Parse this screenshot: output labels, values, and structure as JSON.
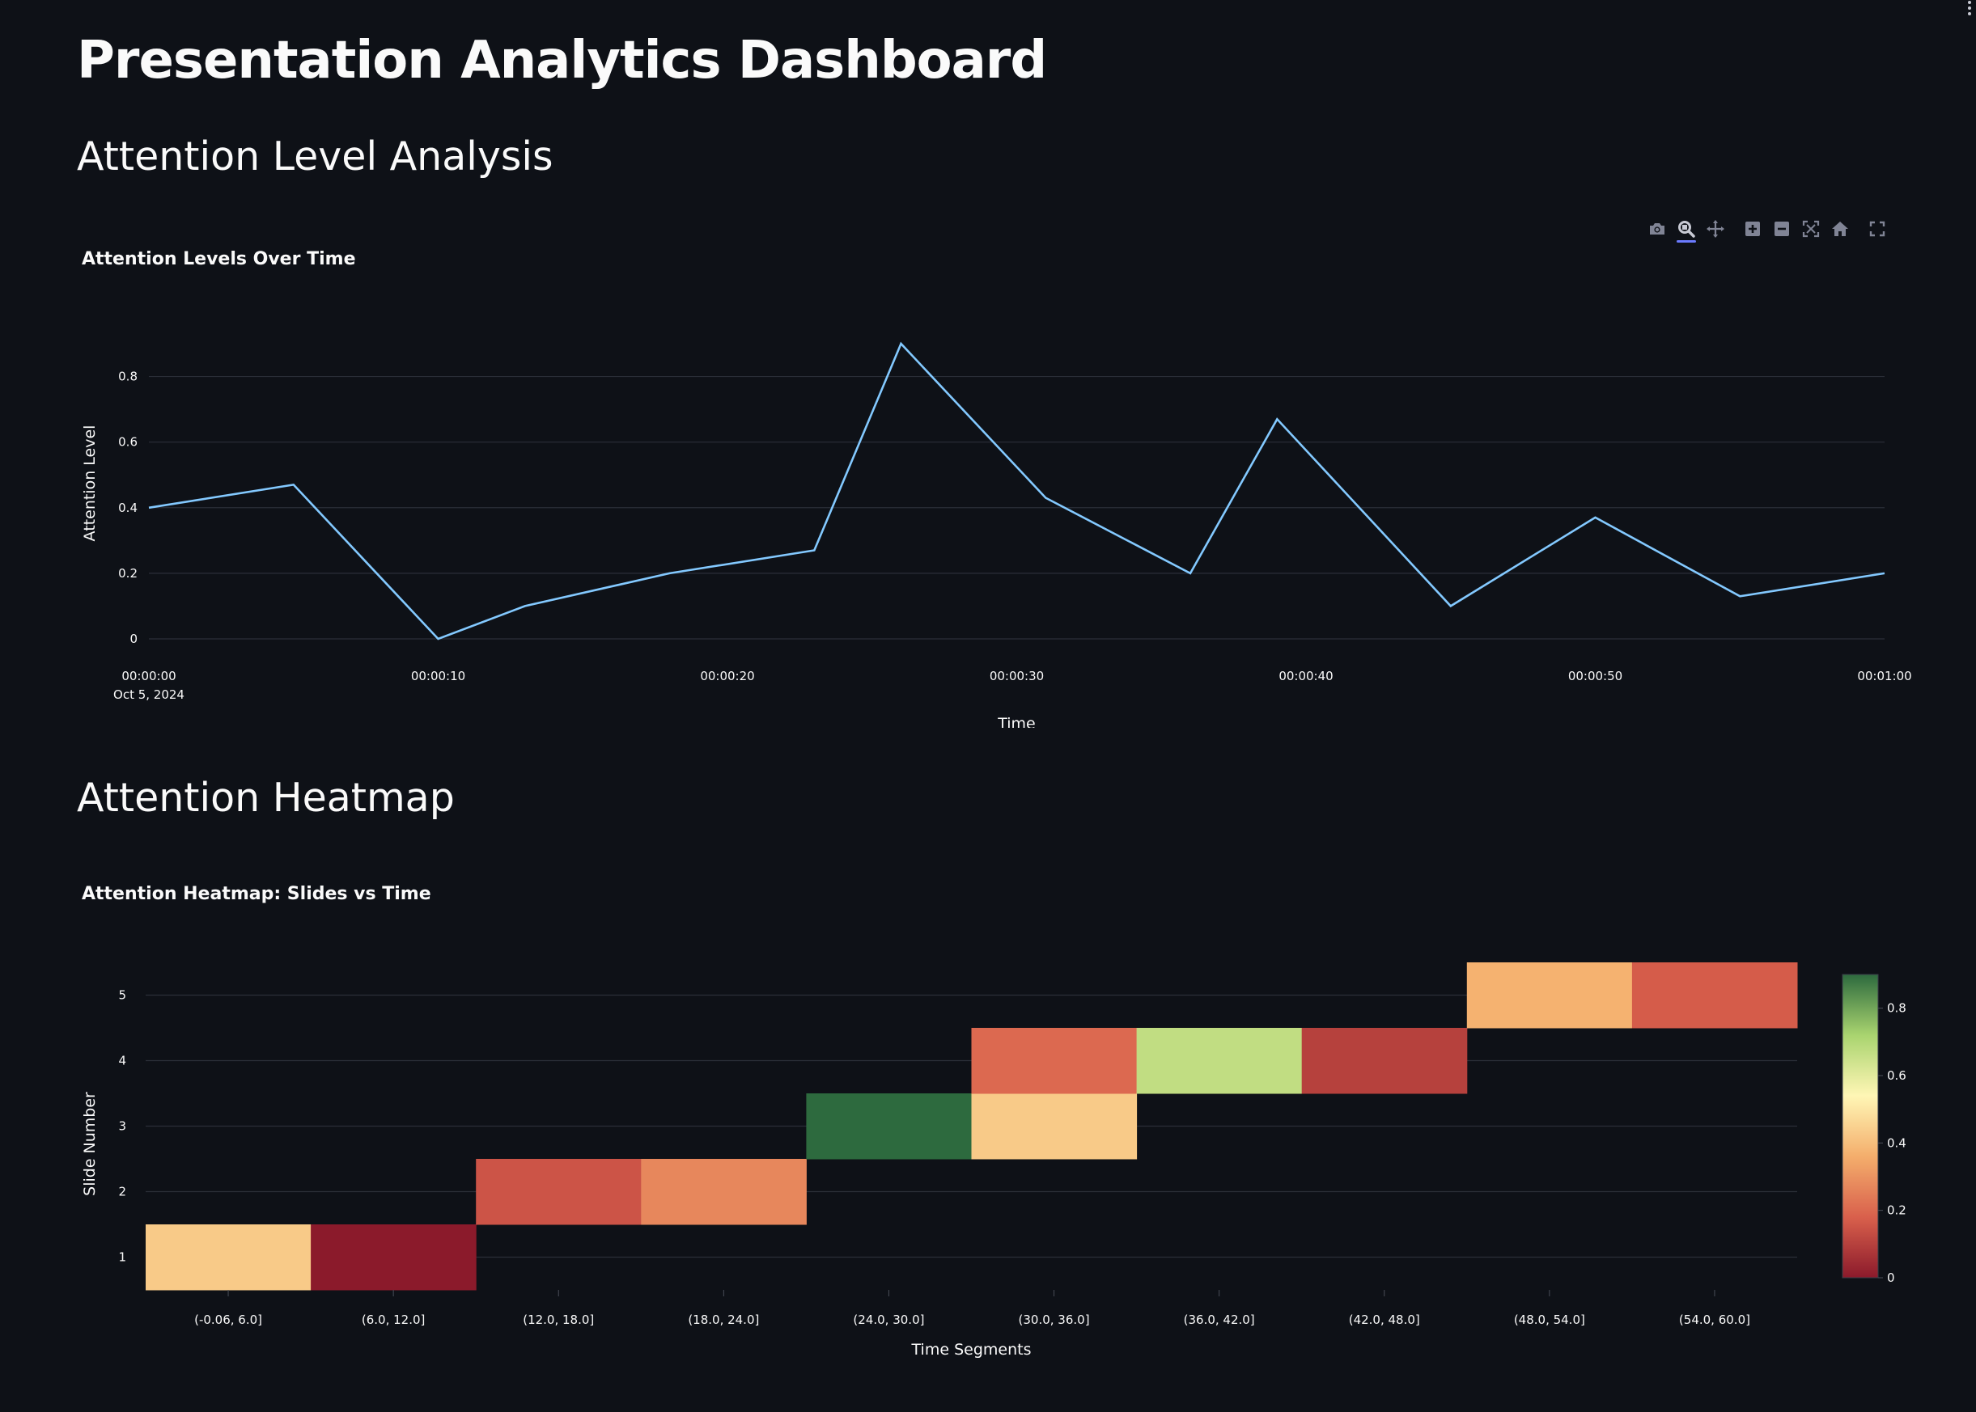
{
  "page": {
    "title": "Presentation Analytics Dashboard"
  },
  "sections": {
    "attention": "Attention Level Analysis",
    "heatmap": "Attention Heatmap"
  },
  "toolbar": {
    "icons": [
      "camera-icon",
      "zoom-icon",
      "pan-icon",
      "zoom-in-icon",
      "zoom-out-icon",
      "autoscale-icon",
      "reset-axes-icon",
      "fullscreen-icon"
    ],
    "active": "zoom-icon"
  },
  "colors": {
    "background": "#0e1117",
    "line": "#83c9ff",
    "grid": "#2b2f38",
    "colorscale": [
      "#8b1a2b",
      "#d9604c",
      "#f4ae6c",
      "#fff6b5",
      "#a9d46f",
      "#2d6a3e"
    ]
  },
  "chart_data": [
    {
      "type": "line",
      "title": "Attention Levels Over Time",
      "xlabel": "Time",
      "ylabel": "Attention Level",
      "x_ticks": [
        "00:00:00",
        "00:00:10",
        "00:00:20",
        "00:00:30",
        "00:00:40",
        "00:00:50",
        "00:01:00"
      ],
      "x_tick_date": "Oct 5, 2024",
      "y_ticks": [
        "0",
        "0.2",
        "0.4",
        "0.6",
        "0.8"
      ],
      "xlim": [
        0,
        60
      ],
      "ylim": [
        0,
        0.9
      ],
      "grid": true,
      "series": [
        {
          "x": [
            0,
            5,
            10,
            13,
            18,
            23,
            26,
            31,
            36,
            39,
            45,
            50,
            55,
            60
          ],
          "y": [
            0.4,
            0.47,
            0.0,
            0.1,
            0.2,
            0.27,
            0.9,
            0.43,
            0.2,
            0.67,
            0.1,
            0.37,
            0.13,
            0.2
          ]
        }
      ]
    },
    {
      "type": "heatmap",
      "title": "Attention Heatmap: Slides vs Time",
      "xlabel": "Time Segments",
      "ylabel": "Slide Number",
      "categories": [
        "(-0.06, 6.0]",
        "(6.0, 12.0]",
        "(12.0, 18.0]",
        "(18.0, 24.0]",
        "(24.0, 30.0]",
        "(30.0, 36.0]",
        "(36.0, 42.0]",
        "(42.0, 48.0]",
        "(48.0, 54.0]",
        "(54.0, 60.0]"
      ],
      "y_ticks": [
        "1",
        "2",
        "3",
        "4",
        "5"
      ],
      "cells": [
        {
          "x": "(-0.06, 6.0]",
          "y": 1,
          "value": 0.43
        },
        {
          "x": "(6.0, 12.0]",
          "y": 1,
          "value": 0.0
        },
        {
          "x": "(12.0, 18.0]",
          "y": 2,
          "value": 0.15
        },
        {
          "x": "(18.0, 24.0]",
          "y": 2,
          "value": 0.27
        },
        {
          "x": "(24.0, 30.0]",
          "y": 3,
          "value": 0.9
        },
        {
          "x": "(30.0, 36.0]",
          "y": 3,
          "value": 0.43
        },
        {
          "x": "(30.0, 36.0]",
          "y": 4,
          "value": 0.2
        },
        {
          "x": "(36.0, 42.0]",
          "y": 4,
          "value": 0.67
        },
        {
          "x": "(42.0, 48.0]",
          "y": 4,
          "value": 0.1
        },
        {
          "x": "(48.0, 54.0]",
          "y": 5,
          "value": 0.37
        },
        {
          "x": "(54.0, 60.0]",
          "y": 5,
          "value": 0.17
        }
      ],
      "colorbar": {
        "ticks": [
          "0",
          "0.2",
          "0.4",
          "0.6",
          "0.8"
        ],
        "range": [
          0,
          0.9
        ]
      }
    }
  ]
}
